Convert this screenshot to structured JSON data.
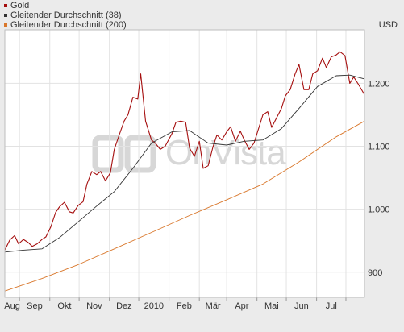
{
  "legend": {
    "items": [
      {
        "label": "Gold",
        "color": "#a50e0e"
      },
      {
        "label": "Gleitender Durchschnitt (38)",
        "color": "#333333"
      },
      {
        "label": "Gleitender Durchschnitt (200)",
        "color": "#d9772b"
      }
    ]
  },
  "unit": "USD",
  "watermark": "OnVista",
  "chart_data": {
    "type": "line",
    "title": "",
    "xlabel": "",
    "ylabel": "USD",
    "ylim": [
      860,
      1285
    ],
    "y_ticks": [
      900,
      1000,
      1100,
      1200
    ],
    "y_tick_labels": [
      "900",
      "1.000",
      "1.100",
      "1.200"
    ],
    "x_labels": [
      "Aug",
      "Sep",
      "Okt",
      "Nov",
      "Dez",
      "2010",
      "Feb",
      "Mär",
      "Apr",
      "Mai",
      "Jun",
      "Jul"
    ],
    "grid": true,
    "legend_position": "top-left",
    "x_range": [
      "2009-07-17",
      "2010-07-20"
    ],
    "series": [
      {
        "name": "Gold",
        "color": "#a50e0e",
        "points": [
          [
            "2009-07-17",
            935
          ],
          [
            "2009-07-22",
            951
          ],
          [
            "2009-07-27",
            958
          ],
          [
            "2009-07-31",
            945
          ],
          [
            "2009-08-05",
            952
          ],
          [
            "2009-08-10",
            947
          ],
          [
            "2009-08-14",
            941
          ],
          [
            "2009-08-19",
            945
          ],
          [
            "2009-08-24",
            952
          ],
          [
            "2009-08-28",
            956
          ],
          [
            "2009-09-02",
            972
          ],
          [
            "2009-09-07",
            995
          ],
          [
            "2009-09-11",
            1004
          ],
          [
            "2009-09-16",
            1011
          ],
          [
            "2009-09-21",
            996
          ],
          [
            "2009-09-25",
            994
          ],
          [
            "2009-09-30",
            1006
          ],
          [
            "2009-10-05",
            1012
          ],
          [
            "2009-10-09",
            1040
          ],
          [
            "2009-10-14",
            1060
          ],
          [
            "2009-10-19",
            1055
          ],
          [
            "2009-10-23",
            1060
          ],
          [
            "2009-10-28",
            1045
          ],
          [
            "2009-11-02",
            1058
          ],
          [
            "2009-11-06",
            1095
          ],
          [
            "2009-11-11",
            1118
          ],
          [
            "2009-11-16",
            1140
          ],
          [
            "2009-11-20",
            1150
          ],
          [
            "2009-11-25",
            1178
          ],
          [
            "2009-11-30",
            1175
          ],
          [
            "2009-12-03",
            1215
          ],
          [
            "2009-12-08",
            1140
          ],
          [
            "2009-12-14",
            1110
          ],
          [
            "2009-12-18",
            1105
          ],
          [
            "2009-12-23",
            1095
          ],
          [
            "2009-12-28",
            1100
          ],
          [
            "2010-01-04",
            1120
          ],
          [
            "2010-01-08",
            1138
          ],
          [
            "2010-01-13",
            1140
          ],
          [
            "2010-01-18",
            1138
          ],
          [
            "2010-01-22",
            1097
          ],
          [
            "2010-01-27",
            1084
          ],
          [
            "2010-02-01",
            1108
          ],
          [
            "2010-02-05",
            1065
          ],
          [
            "2010-02-10",
            1069
          ],
          [
            "2010-02-15",
            1099
          ],
          [
            "2010-02-19",
            1118
          ],
          [
            "2010-02-24",
            1110
          ],
          [
            "2010-03-01",
            1123
          ],
          [
            "2010-03-05",
            1131
          ],
          [
            "2010-03-10",
            1108
          ],
          [
            "2010-03-15",
            1124
          ],
          [
            "2010-03-19",
            1110
          ],
          [
            "2010-03-24",
            1095
          ],
          [
            "2010-03-29",
            1105
          ],
          [
            "2010-04-02",
            1125
          ],
          [
            "2010-04-07",
            1150
          ],
          [
            "2010-04-12",
            1155
          ],
          [
            "2010-04-16",
            1130
          ],
          [
            "2010-04-21",
            1145
          ],
          [
            "2010-04-26",
            1160
          ],
          [
            "2010-04-30",
            1180
          ],
          [
            "2010-05-05",
            1190
          ],
          [
            "2010-05-10",
            1215
          ],
          [
            "2010-05-14",
            1230
          ],
          [
            "2010-05-19",
            1190
          ],
          [
            "2010-05-24",
            1190
          ],
          [
            "2010-05-28",
            1215
          ],
          [
            "2010-06-02",
            1220
          ],
          [
            "2010-06-07",
            1240
          ],
          [
            "2010-06-11",
            1225
          ],
          [
            "2010-06-16",
            1242
          ],
          [
            "2010-06-21",
            1245
          ],
          [
            "2010-06-25",
            1250
          ],
          [
            "2010-06-30",
            1244
          ],
          [
            "2010-07-05",
            1200
          ],
          [
            "2010-07-09",
            1210
          ],
          [
            "2010-07-14",
            1198
          ],
          [
            "2010-07-20",
            1182
          ]
        ]
      },
      {
        "name": "Gleitender Durchschnitt (38)",
        "color": "#333333",
        "points": [
          [
            "2009-07-17",
            932
          ],
          [
            "2009-08-05",
            935
          ],
          [
            "2009-08-24",
            937
          ],
          [
            "2009-09-11",
            955
          ],
          [
            "2009-09-30",
            980
          ],
          [
            "2009-10-19",
            1005
          ],
          [
            "2009-11-06",
            1028
          ],
          [
            "2009-11-25",
            1065
          ],
          [
            "2009-12-14",
            1105
          ],
          [
            "2010-01-04",
            1123
          ],
          [
            "2010-01-22",
            1125
          ],
          [
            "2010-02-10",
            1105
          ],
          [
            "2010-03-01",
            1102
          ],
          [
            "2010-03-19",
            1108
          ],
          [
            "2010-04-07",
            1110
          ],
          [
            "2010-04-26",
            1128
          ],
          [
            "2010-05-14",
            1160
          ],
          [
            "2010-06-02",
            1195
          ],
          [
            "2010-06-21",
            1212
          ],
          [
            "2010-07-05",
            1213
          ],
          [
            "2010-07-20",
            1207
          ]
        ]
      },
      {
        "name": "Gleitender Durchschnitt (200)",
        "color": "#d9772b",
        "points": [
          [
            "2009-07-17",
            870
          ],
          [
            "2009-08-24",
            890
          ],
          [
            "2009-09-30",
            912
          ],
          [
            "2009-11-06",
            937
          ],
          [
            "2009-12-14",
            963
          ],
          [
            "2010-01-22",
            990
          ],
          [
            "2010-03-01",
            1015
          ],
          [
            "2010-04-07",
            1040
          ],
          [
            "2010-05-14",
            1075
          ],
          [
            "2010-06-21",
            1115
          ],
          [
            "2010-07-20",
            1140
          ]
        ]
      }
    ]
  }
}
